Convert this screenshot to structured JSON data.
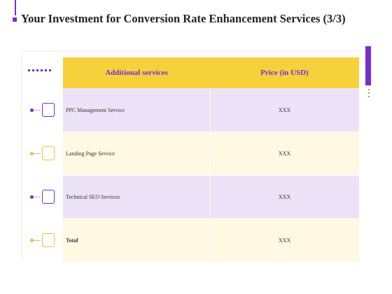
{
  "header": {
    "title": "Your Investment for Conversion Rate Enhancement Services (3/3)"
  },
  "table": {
    "columns": [
      "Additional  services",
      "Price (in USD)"
    ],
    "rows": [
      [
        "PPC Management Service",
        "XXX"
      ],
      [
        "Landing Page Service",
        "XXX"
      ],
      [
        "Technical SEO Services",
        "XXX"
      ],
      [
        "Total",
        "XXX"
      ]
    ]
  }
}
